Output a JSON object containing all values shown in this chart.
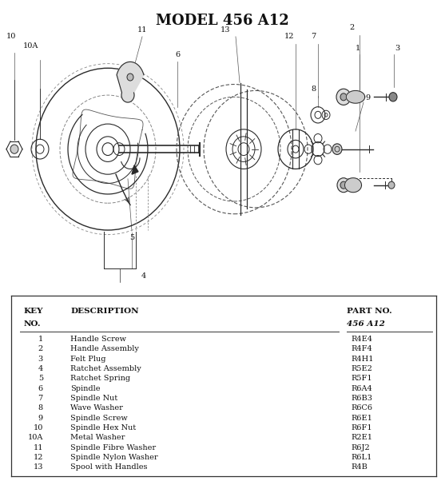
{
  "title": "MODEL 456 A12",
  "title_fontsize": 13,
  "title_fontweight": "bold",
  "background_color": "#ffffff",
  "table_rows": [
    [
      "1",
      "Handle Screw",
      "R4E4"
    ],
    [
      "2",
      "Handle Assembly",
      "R4F4"
    ],
    [
      "3",
      "Felt Plug",
      "R4H1"
    ],
    [
      "4",
      "Ratchet Assembly",
      "R5E2"
    ],
    [
      "5",
      "Ratchet Spring",
      "R5F1"
    ],
    [
      "6",
      "Spindle",
      "R6A4"
    ],
    [
      "7",
      "Spindle Nut",
      "R6B3"
    ],
    [
      "8",
      "Wave Washer",
      "R6C6"
    ],
    [
      "9",
      "Spindle Screw",
      "R6E1"
    ],
    [
      "10",
      "Spindle Hex Nut",
      "R6F1"
    ],
    [
      "10A",
      "Metal Washer",
      "R2E1"
    ],
    [
      "11",
      "Spindle Fibre Washer",
      "R6J2"
    ],
    [
      "12",
      "Spindle Nylon Washer",
      "R6L1"
    ],
    [
      "13",
      "Spool with Handles",
      "R4B"
    ]
  ]
}
